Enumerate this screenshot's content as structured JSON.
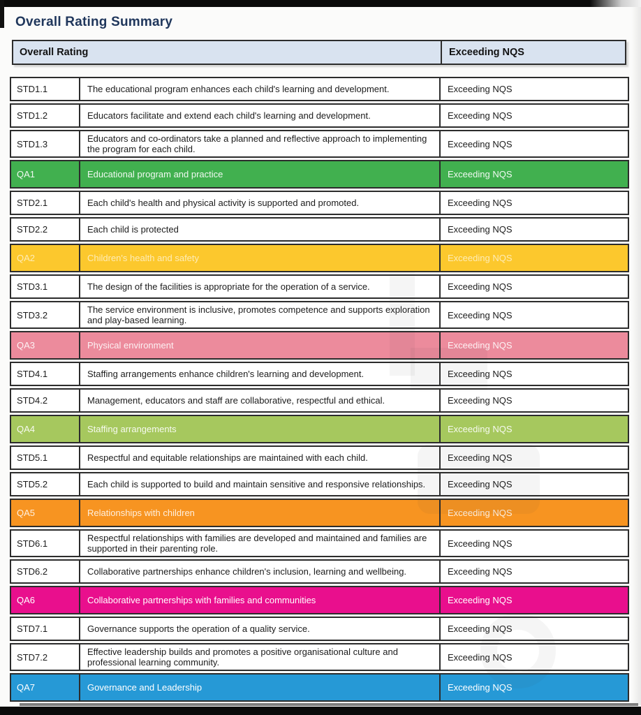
{
  "title": "Overall Rating Summary",
  "header": {
    "left": "Overall Rating",
    "right": "Exceeding NQS"
  },
  "colors": {
    "title_text": "#20375c",
    "header_bg": "#d9e3f0",
    "table_border": "#2c2c2c",
    "qa1_green": "#41b04f",
    "qa2_yellow": "#fcc82d",
    "qa3_pink": "#ec8b9c",
    "qa4_light_green": "#a6c85e",
    "qa5_orange": "#f79421",
    "qa6_magenta": "#e90f8d",
    "qa7_blue": "#2699d6"
  },
  "rows": [
    {
      "kind": "standard",
      "code": "STD1.1",
      "description": "The educational program enhances each child's learning and development.",
      "rating": "Exceeding NQS"
    },
    {
      "kind": "standard",
      "code": "STD1.2",
      "description": "Educators facilitate and extend each child's learning and development.",
      "rating": "Exceeding NQS"
    },
    {
      "kind": "standard",
      "code": "STD1.3",
      "description": "Educators and co-ordinators take a planned and reflective approach to implementing the program for each child.",
      "rating": "Exceeding NQS"
    },
    {
      "kind": "quality_area",
      "code": "QA1",
      "description": "Educational program and practice",
      "rating": "Exceeding NQS",
      "bg": "#41b04f",
      "fg": "rgba(255,255,255,0.92)"
    },
    {
      "kind": "standard",
      "code": "STD2.1",
      "description": "Each child's health and physical activity is supported and promoted.",
      "rating": "Exceeding NQS"
    },
    {
      "kind": "standard",
      "code": "STD2.2",
      "description": "Each child is protected",
      "rating": "Exceeding NQS"
    },
    {
      "kind": "quality_area",
      "code": "QA2",
      "description": "Children's health and safety",
      "rating": "Exceeding NQS",
      "bg": "#fcc82d",
      "fg": "rgba(255,255,255,0.65)"
    },
    {
      "kind": "standard",
      "code": "STD3.1",
      "description": "The design of the facilities is appropriate for the operation of a service.",
      "rating": "Exceeding NQS"
    },
    {
      "kind": "standard",
      "code": "STD3.2",
      "description": "The service environment is inclusive, promotes competence and supports exploration and play-based learning.",
      "rating": "Exceeding NQS"
    },
    {
      "kind": "quality_area",
      "code": "QA3",
      "description": "Physical environment",
      "rating": "Exceeding NQS",
      "bg": "#ec8b9c",
      "fg": "rgba(255,255,255,0.88)"
    },
    {
      "kind": "standard",
      "code": "STD4.1",
      "description": "Staffing arrangements enhance children's learning and development.",
      "rating": "Exceeding NQS"
    },
    {
      "kind": "standard",
      "code": "STD4.2",
      "description": "Management, educators and staff are collaborative, respectful and ethical.",
      "rating": "Exceeding NQS"
    },
    {
      "kind": "quality_area",
      "code": "QA4",
      "description": "Staffing arrangements",
      "rating": "Exceeding NQS",
      "bg": "#a6c85e",
      "fg": "rgba(255,255,255,0.9)"
    },
    {
      "kind": "standard",
      "code": "STD5.1",
      "description": "Respectful and equitable relationships are maintained with each child.",
      "rating": "Exceeding NQS"
    },
    {
      "kind": "standard",
      "code": "STD5.2",
      "description": "Each child is supported to build and maintain sensitive and responsive relationships.",
      "rating": "Exceeding NQS"
    },
    {
      "kind": "quality_area",
      "code": "QA5",
      "description": "Relationships with children",
      "rating": "Exceeding NQS",
      "bg": "#f79421",
      "fg": "rgba(255,255,255,0.85)"
    },
    {
      "kind": "standard",
      "code": "STD6.1",
      "description": "Respectful relationships with families are developed and maintained and families are supported in their parenting role.",
      "rating": "Exceeding NQS"
    },
    {
      "kind": "standard",
      "code": "STD6.2",
      "description": "Collaborative partnerships enhance children's inclusion, learning and wellbeing.",
      "rating": "Exceeding NQS"
    },
    {
      "kind": "quality_area",
      "code": "QA6",
      "description": "Collaborative partnerships with families and communities",
      "rating": "Exceeding NQS",
      "bg": "#e90f8d",
      "fg": "#ffffff"
    },
    {
      "kind": "standard",
      "code": "STD7.1",
      "description": "Governance supports the operation of a quality service.",
      "rating": "Exceeding NQS"
    },
    {
      "kind": "standard",
      "code": "STD7.2",
      "description": "Effective leadership builds and promotes a positive organisational culture and professional learning community.",
      "rating": "Exceeding NQS"
    },
    {
      "kind": "quality_area",
      "code": "QA7",
      "description": "Governance and Leadership",
      "rating": "Exceeding NQS",
      "bg": "#2699d6",
      "fg": "#ffffff"
    }
  ]
}
